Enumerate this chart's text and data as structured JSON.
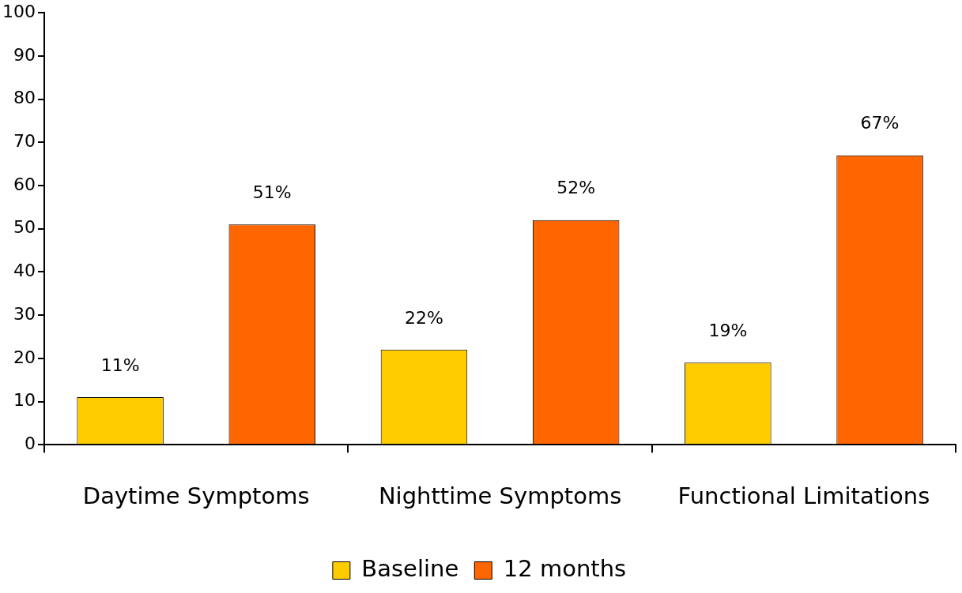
{
  "chart_data": {
    "type": "bar",
    "categories": [
      "Daytime Symptoms",
      "Nighttime Symptoms",
      "Functional Limitations"
    ],
    "series": [
      {
        "name": "Baseline",
        "color": "#ffcc00",
        "values": [
          11,
          22,
          19
        ],
        "value_labels": [
          "11%",
          "22%",
          "19%"
        ]
      },
      {
        "name": "12 months",
        "color": "#ff6600",
        "values": [
          51,
          52,
          67
        ],
        "value_labels": [
          "51%",
          "52%",
          "67%"
        ]
      }
    ],
    "ylim": [
      0,
      100
    ],
    "yticks": [
      0,
      10,
      20,
      30,
      40,
      50,
      60,
      70,
      80,
      90,
      100
    ],
    "legend": "bottom"
  }
}
